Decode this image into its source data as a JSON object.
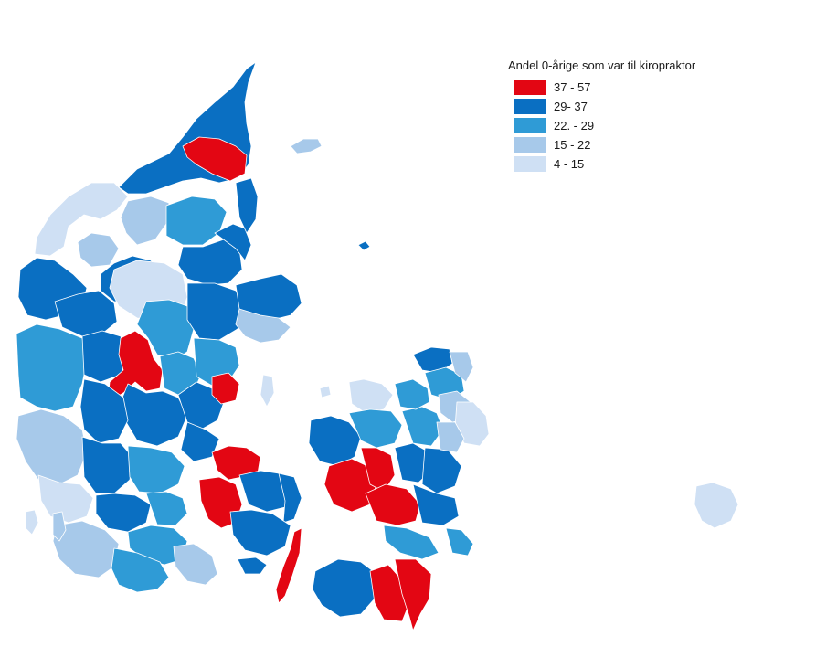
{
  "legend": {
    "title": "Andel 0-årige som var til kiropraktor",
    "classes": [
      {
        "label": "37 - 57",
        "color": "#e30613"
      },
      {
        "label": "29- 37",
        "color": "#0a6fc2"
      },
      {
        "label": "22. - 29",
        "color": "#2f9bd6"
      },
      {
        "label": "15 - 22",
        "color": "#a7c9ea"
      },
      {
        "label": "4 - 15",
        "color": "#cfe0f4"
      }
    ]
  },
  "map": {
    "region": "Danmark (kommuner)",
    "background": "#ffffff",
    "border_color": "#ffffff"
  }
}
